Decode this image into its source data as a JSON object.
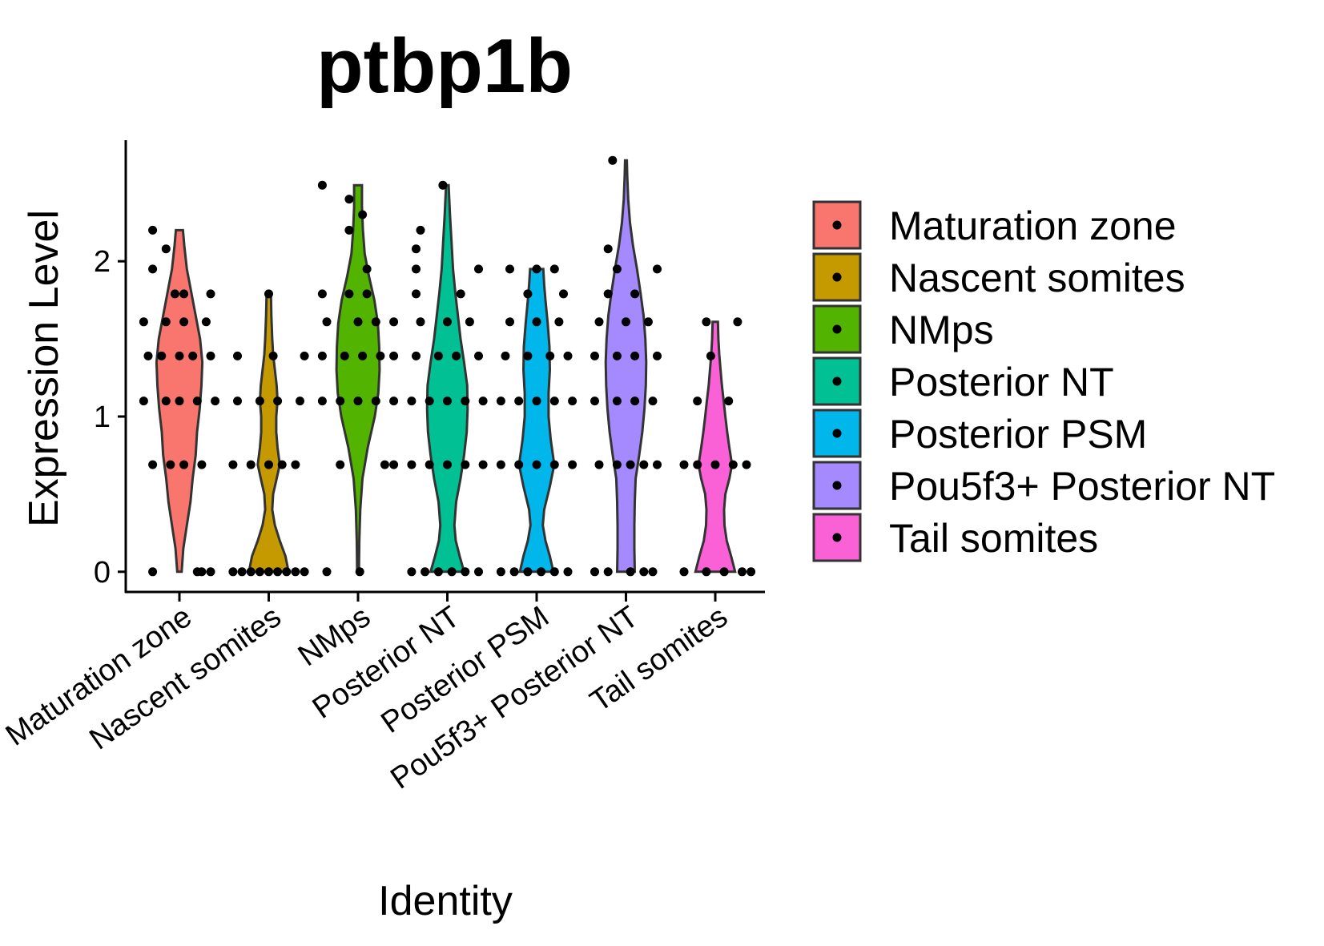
{
  "chart_data": {
    "type": "violin",
    "title": "ptbp1b",
    "xlabel": "Identity",
    "ylabel": "Expression Level",
    "categories": [
      "Maturation zone",
      "Nascent somites",
      "NMps",
      "Posterior NT",
      "Posterior PSM",
      "Pou5f3+ Posterior NT",
      "Tail somites"
    ],
    "y_ticks": [
      0,
      1,
      2
    ],
    "ylim": [
      -0.13,
      2.78
    ],
    "legend_position": "right",
    "series": [
      {
        "name": "Maturation zone",
        "color": "#F8766D",
        "ymax": 2.2,
        "profile": [
          [
            0,
            0.05
          ],
          [
            0.15,
            0.09
          ],
          [
            0.3,
            0.17
          ],
          [
            0.45,
            0.25
          ],
          [
            0.6,
            0.3
          ],
          [
            0.75,
            0.37
          ],
          [
            0.9,
            0.4
          ],
          [
            1.05,
            0.46
          ],
          [
            1.2,
            0.5
          ],
          [
            1.35,
            0.52
          ],
          [
            1.5,
            0.47
          ],
          [
            1.65,
            0.37
          ],
          [
            1.8,
            0.27
          ],
          [
            1.95,
            0.17
          ],
          [
            2.1,
            0.11
          ],
          [
            2.2,
            0.08
          ]
        ],
        "points": [
          [
            0,
            -0.3
          ],
          [
            0,
            0.2
          ],
          [
            0,
            0.35
          ],
          [
            0,
            0.25
          ],
          [
            0.69,
            -0.3
          ],
          [
            0.69,
            -0.1
          ],
          [
            0.69,
            0.05
          ],
          [
            0.69,
            0.25
          ],
          [
            1.1,
            -0.4
          ],
          [
            1.1,
            -0.15
          ],
          [
            1.1,
            0.0
          ],
          [
            1.1,
            0.2
          ],
          [
            1.1,
            0.4
          ],
          [
            1.39,
            -0.35
          ],
          [
            1.39,
            -0.2
          ],
          [
            1.39,
            0.0
          ],
          [
            1.39,
            0.15
          ],
          [
            1.39,
            0.35
          ],
          [
            1.61,
            -0.4
          ],
          [
            1.61,
            -0.15
          ],
          [
            1.61,
            0.05
          ],
          [
            1.61,
            0.3
          ],
          [
            1.79,
            -0.05
          ],
          [
            1.79,
            0.05
          ],
          [
            1.79,
            0.35
          ],
          [
            1.95,
            -0.3
          ],
          [
            2.08,
            -0.15
          ],
          [
            2.2,
            -0.3
          ]
        ]
      },
      {
        "name": "Nascent somites",
        "color": "#C49A00",
        "ymax": 1.79,
        "profile": [
          [
            0,
            0.45
          ],
          [
            0.1,
            0.38
          ],
          [
            0.2,
            0.25
          ],
          [
            0.3,
            0.14
          ],
          [
            0.4,
            0.08
          ],
          [
            0.5,
            0.1
          ],
          [
            0.6,
            0.18
          ],
          [
            0.69,
            0.25
          ],
          [
            0.8,
            0.2
          ],
          [
            0.9,
            0.17
          ],
          [
            1.0,
            0.17
          ],
          [
            1.1,
            0.2
          ],
          [
            1.2,
            0.18
          ],
          [
            1.3,
            0.14
          ],
          [
            1.4,
            0.1
          ],
          [
            1.5,
            0.08
          ],
          [
            1.65,
            0.06
          ],
          [
            1.79,
            0.05
          ]
        ],
        "points": [
          [
            0,
            -0.4
          ],
          [
            0,
            -0.3
          ],
          [
            0,
            -0.2
          ],
          [
            0,
            -0.1
          ],
          [
            0,
            0.0
          ],
          [
            0,
            0.1
          ],
          [
            0,
            0.2
          ],
          [
            0,
            0.3
          ],
          [
            0,
            0.4
          ],
          [
            0.69,
            -0.4
          ],
          [
            0.69,
            -0.2
          ],
          [
            0.69,
            0.0
          ],
          [
            0.69,
            0.15
          ],
          [
            0.69,
            0.3
          ],
          [
            1.1,
            -0.35
          ],
          [
            1.1,
            -0.1
          ],
          [
            1.1,
            0.1
          ],
          [
            1.1,
            0.35
          ],
          [
            1.39,
            -0.35
          ],
          [
            1.39,
            0.05
          ],
          [
            1.39,
            0.4
          ],
          [
            1.79,
            0.0
          ]
        ]
      },
      {
        "name": "NMps",
        "color": "#53B400",
        "ymax": 2.49,
        "profile": [
          [
            0,
            0.02
          ],
          [
            0.2,
            0.03
          ],
          [
            0.4,
            0.05
          ],
          [
            0.6,
            0.1
          ],
          [
            0.8,
            0.22
          ],
          [
            1.0,
            0.38
          ],
          [
            1.15,
            0.46
          ],
          [
            1.3,
            0.49
          ],
          [
            1.45,
            0.48
          ],
          [
            1.6,
            0.45
          ],
          [
            1.75,
            0.37
          ],
          [
            1.9,
            0.25
          ],
          [
            2.05,
            0.15
          ],
          [
            2.2,
            0.11
          ],
          [
            2.35,
            0.09
          ],
          [
            2.49,
            0.09
          ]
        ],
        "points": [
          [
            0,
            -0.35
          ],
          [
            0,
            0.02
          ],
          [
            0.69,
            -0.2
          ],
          [
            0.69,
            0.3
          ],
          [
            0.69,
            0.4
          ],
          [
            1.1,
            -0.4
          ],
          [
            1.1,
            -0.2
          ],
          [
            1.1,
            0.0
          ],
          [
            1.1,
            0.2
          ],
          [
            1.1,
            0.4
          ],
          [
            1.39,
            -0.4
          ],
          [
            1.39,
            -0.15
          ],
          [
            1.39,
            0.05
          ],
          [
            1.39,
            0.25
          ],
          [
            1.39,
            0.4
          ],
          [
            1.61,
            -0.35
          ],
          [
            1.61,
            0.0
          ],
          [
            1.61,
            0.2
          ],
          [
            1.61,
            0.4
          ],
          [
            1.79,
            -0.4
          ],
          [
            1.79,
            -0.1
          ],
          [
            1.79,
            0.1
          ],
          [
            1.95,
            0.1
          ],
          [
            2.2,
            -0.1
          ],
          [
            2.3,
            0.05
          ],
          [
            2.4,
            -0.1
          ],
          [
            2.49,
            -0.4
          ]
        ]
      },
      {
        "name": "Posterior NT",
        "color": "#00C094",
        "ymax": 2.49,
        "profile": [
          [
            0,
            0.38
          ],
          [
            0.1,
            0.28
          ],
          [
            0.2,
            0.19
          ],
          [
            0.3,
            0.16
          ],
          [
            0.45,
            0.2
          ],
          [
            0.6,
            0.3
          ],
          [
            0.75,
            0.38
          ],
          [
            0.9,
            0.44
          ],
          [
            1.05,
            0.46
          ],
          [
            1.2,
            0.45
          ],
          [
            1.35,
            0.38
          ],
          [
            1.5,
            0.3
          ],
          [
            1.65,
            0.24
          ],
          [
            1.8,
            0.18
          ],
          [
            1.95,
            0.13
          ],
          [
            2.1,
            0.1
          ],
          [
            2.3,
            0.06
          ],
          [
            2.49,
            0.03
          ]
        ],
        "points": [
          [
            0,
            -0.4
          ],
          [
            0,
            -0.25
          ],
          [
            0,
            -0.1
          ],
          [
            0,
            0.05
          ],
          [
            0,
            0.2
          ],
          [
            0,
            0.35
          ],
          [
            0.69,
            -0.4
          ],
          [
            0.69,
            -0.2
          ],
          [
            0.69,
            0.0
          ],
          [
            0.69,
            0.2
          ],
          [
            0.69,
            0.4
          ],
          [
            1.1,
            -0.4
          ],
          [
            1.1,
            -0.2
          ],
          [
            1.1,
            0.0
          ],
          [
            1.1,
            0.2
          ],
          [
            1.1,
            0.4
          ],
          [
            1.39,
            -0.35
          ],
          [
            1.39,
            -0.1
          ],
          [
            1.39,
            0.1
          ],
          [
            1.39,
            0.35
          ],
          [
            1.61,
            -0.3
          ],
          [
            1.61,
            0.0
          ],
          [
            1.61,
            0.25
          ],
          [
            1.79,
            -0.35
          ],
          [
            1.79,
            0.15
          ],
          [
            1.95,
            -0.35
          ],
          [
            1.95,
            0.35
          ],
          [
            2.08,
            -0.35
          ],
          [
            2.2,
            -0.3
          ],
          [
            2.49,
            -0.05
          ]
        ]
      },
      {
        "name": "Posterior PSM",
        "color": "#00B6EB",
        "ymax": 1.95,
        "profile": [
          [
            0,
            0.38
          ],
          [
            0.1,
            0.3
          ],
          [
            0.2,
            0.2
          ],
          [
            0.3,
            0.14
          ],
          [
            0.4,
            0.17
          ],
          [
            0.55,
            0.3
          ],
          [
            0.69,
            0.4
          ],
          [
            0.85,
            0.32
          ],
          [
            1.0,
            0.27
          ],
          [
            1.15,
            0.27
          ],
          [
            1.3,
            0.3
          ],
          [
            1.45,
            0.29
          ],
          [
            1.6,
            0.25
          ],
          [
            1.75,
            0.2
          ],
          [
            1.85,
            0.17
          ],
          [
            1.95,
            0.15
          ]
        ],
        "points": [
          [
            0,
            -0.4
          ],
          [
            0,
            -0.25
          ],
          [
            0,
            -0.1
          ],
          [
            0,
            0.05
          ],
          [
            0,
            0.2
          ],
          [
            0,
            0.35
          ],
          [
            0.69,
            -0.4
          ],
          [
            0.69,
            -0.2
          ],
          [
            0.69,
            0.0
          ],
          [
            0.69,
            0.2
          ],
          [
            0.69,
            0.4
          ],
          [
            1.1,
            -0.4
          ],
          [
            1.1,
            -0.2
          ],
          [
            1.1,
            0.0
          ],
          [
            1.1,
            0.2
          ],
          [
            1.1,
            0.4
          ],
          [
            1.39,
            -0.35
          ],
          [
            1.39,
            -0.1
          ],
          [
            1.39,
            0.15
          ],
          [
            1.39,
            0.35
          ],
          [
            1.61,
            -0.3
          ],
          [
            1.61,
            0.0
          ],
          [
            1.61,
            0.25
          ],
          [
            1.79,
            -0.1
          ],
          [
            1.79,
            0.3
          ],
          [
            1.95,
            -0.3
          ],
          [
            1.95,
            0.0
          ],
          [
            1.95,
            0.2
          ]
        ]
      },
      {
        "name": "Pou5f3+ Posterior NT",
        "color": "#A58AFF",
        "ymax": 2.65,
        "profile": [
          [
            0,
            0.2
          ],
          [
            0.15,
            0.19
          ],
          [
            0.3,
            0.19
          ],
          [
            0.45,
            0.2
          ],
          [
            0.6,
            0.22
          ],
          [
            0.75,
            0.3
          ],
          [
            0.9,
            0.37
          ],
          [
            1.05,
            0.42
          ],
          [
            1.2,
            0.45
          ],
          [
            1.35,
            0.46
          ],
          [
            1.5,
            0.44
          ],
          [
            1.65,
            0.4
          ],
          [
            1.8,
            0.33
          ],
          [
            1.95,
            0.25
          ],
          [
            2.1,
            0.16
          ],
          [
            2.25,
            0.09
          ],
          [
            2.4,
            0.05
          ],
          [
            2.55,
            0.03
          ],
          [
            2.65,
            0.02
          ]
        ],
        "points": [
          [
            0,
            -0.35
          ],
          [
            0,
            -0.2
          ],
          [
            0,
            0.05
          ],
          [
            0,
            0.2
          ],
          [
            0,
            0.3
          ],
          [
            0.69,
            -0.3
          ],
          [
            0.69,
            -0.1
          ],
          [
            0.69,
            0.05
          ],
          [
            0.69,
            0.2
          ],
          [
            0.69,
            0.35
          ],
          [
            1.1,
            -0.35
          ],
          [
            1.1,
            -0.1
          ],
          [
            1.1,
            0.1
          ],
          [
            1.1,
            0.3
          ],
          [
            1.39,
            -0.35
          ],
          [
            1.39,
            -0.1
          ],
          [
            1.39,
            0.1
          ],
          [
            1.39,
            0.35
          ],
          [
            1.61,
            -0.3
          ],
          [
            1.61,
            0.0
          ],
          [
            1.61,
            0.25
          ],
          [
            1.79,
            -0.2
          ],
          [
            1.79,
            0.1
          ],
          [
            1.95,
            -0.1
          ],
          [
            1.95,
            0.35
          ],
          [
            2.08,
            -0.2
          ],
          [
            2.65,
            -0.15
          ]
        ]
      },
      {
        "name": "Tail somites",
        "color": "#FB61D7",
        "ymax": 1.61,
        "profile": [
          [
            0,
            0.45
          ],
          [
            0.1,
            0.36
          ],
          [
            0.2,
            0.26
          ],
          [
            0.3,
            0.21
          ],
          [
            0.4,
            0.2
          ],
          [
            0.5,
            0.23
          ],
          [
            0.6,
            0.32
          ],
          [
            0.69,
            0.38
          ],
          [
            0.8,
            0.32
          ],
          [
            0.9,
            0.27
          ],
          [
            1.0,
            0.23
          ],
          [
            1.1,
            0.19
          ],
          [
            1.2,
            0.15
          ],
          [
            1.3,
            0.12
          ],
          [
            1.4,
            0.09
          ],
          [
            1.5,
            0.07
          ],
          [
            1.61,
            0.06
          ]
        ],
        "points": [
          [
            0,
            -0.35
          ],
          [
            0,
            -0.1
          ],
          [
            0,
            0.1
          ],
          [
            0,
            0.3
          ],
          [
            0,
            0.4
          ],
          [
            0.69,
            -0.35
          ],
          [
            0.69,
            -0.2
          ],
          [
            0.69,
            0.0
          ],
          [
            0.69,
            0.2
          ],
          [
            0.69,
            0.35
          ],
          [
            1.1,
            -0.2
          ],
          [
            1.1,
            0.15
          ],
          [
            1.39,
            -0.05
          ],
          [
            1.61,
            -0.1
          ],
          [
            1.61,
            0.25
          ]
        ]
      }
    ]
  }
}
